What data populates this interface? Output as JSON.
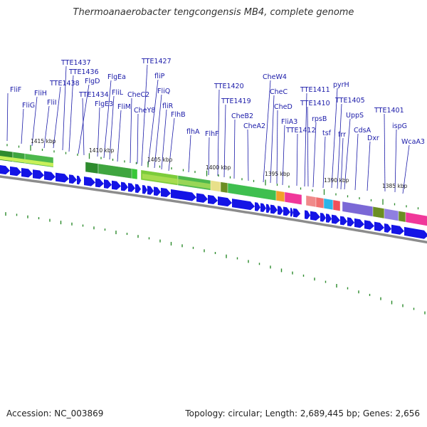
{
  "title": "Thermoanaerobacter tengcongensis MB4, complete genome",
  "footer": {
    "accession": "Accession: NC_003869",
    "topology": "Topology: circular; Length: 2,689,445 bp; Genes: 2,656"
  },
  "colors": {
    "gene_label": "#1a1aa8",
    "forward_gene": "#1414e6",
    "backbone": "#8c8c8c",
    "tick": "#2a8a2a"
  },
  "kbp_marks": [
    "1415 kbp",
    "1410 kbp",
    "1405 kbp",
    "1400 kbp",
    "1395 kbp",
    "1390 kbp",
    "1385 kbp"
  ],
  "gene_labels": [
    "FliF",
    "FliG",
    "FliH",
    "FliI",
    "TTE1438",
    "TTE1437",
    "TTE1436",
    "FlgD",
    "TTE1434",
    "FlgE3",
    "FlgEa",
    "FliL",
    "FliM",
    "CheC2",
    "CheY8",
    "TTE1427",
    "fliP",
    "FliQ",
    "fliR",
    "FlhB",
    "flhA",
    "FlhF",
    "TTE1420",
    "TTE1419",
    "CheB2",
    "CheA2",
    "CheW4",
    "CheC",
    "CheD",
    "FliA3",
    "TTE1412",
    "TTE1411",
    "TTE1410",
    "rpsB",
    "tsf",
    "pyrH",
    "TTE1405",
    "UppS",
    "frr",
    "CdsA",
    "Dxr",
    "TTE1401",
    "ispG",
    "WcaA3"
  ]
}
